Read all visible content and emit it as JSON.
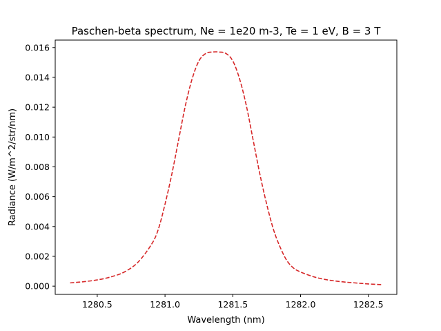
{
  "chart_data": {
    "type": "line",
    "title": "Paschen-beta spectrum, Ne = 1e20 m-3, Te = 1 eV, B = 3 T",
    "xlabel": "Wavelength (nm)",
    "ylabel": "Radiance (W/m^2/str/nm)",
    "xlim": [
      1280.19,
      1282.71
    ],
    "ylim": [
      -0.00055,
      0.0165
    ],
    "xticks": [
      1280.5,
      1281.0,
      1281.5,
      1282.0,
      1282.5
    ],
    "xtick_labels": [
      "1280.5",
      "1281.0",
      "1281.5",
      "1282.0",
      "1282.5"
    ],
    "yticks": [
      0.0,
      0.002,
      0.004,
      0.006,
      0.008,
      0.01,
      0.012,
      0.014,
      0.016
    ],
    "ytick_labels": [
      "0.000",
      "0.002",
      "0.004",
      "0.006",
      "0.008",
      "0.010",
      "0.012",
      "0.014",
      "0.016"
    ],
    "grid": false,
    "series": [
      {
        "name": "Paschen-beta",
        "color": "#d62728",
        "linestyle": "dashed",
        "x": [
          1280.3,
          1280.4,
          1280.5,
          1280.6,
          1280.7,
          1280.8,
          1280.9,
          1280.95,
          1281.0,
          1281.05,
          1281.1,
          1281.15,
          1281.2,
          1281.25,
          1281.3,
          1281.35,
          1281.4,
          1281.45,
          1281.5,
          1281.55,
          1281.6,
          1281.65,
          1281.7,
          1281.75,
          1281.8,
          1281.85,
          1281.9,
          1281.95,
          1282.0,
          1282.1,
          1282.2,
          1282.3,
          1282.4,
          1282.5,
          1282.6
        ],
        "values": [
          0.00022,
          0.0003,
          0.00042,
          0.00062,
          0.00095,
          0.0016,
          0.0028,
          0.0038,
          0.0055,
          0.0075,
          0.0098,
          0.0121,
          0.0139,
          0.0151,
          0.0156,
          0.0157,
          0.0157,
          0.0156,
          0.0151,
          0.0139,
          0.0121,
          0.0098,
          0.0075,
          0.0055,
          0.0038,
          0.0026,
          0.0017,
          0.0012,
          0.00095,
          0.00062,
          0.00042,
          0.0003,
          0.00022,
          0.00015,
          0.0001
        ]
      }
    ]
  }
}
